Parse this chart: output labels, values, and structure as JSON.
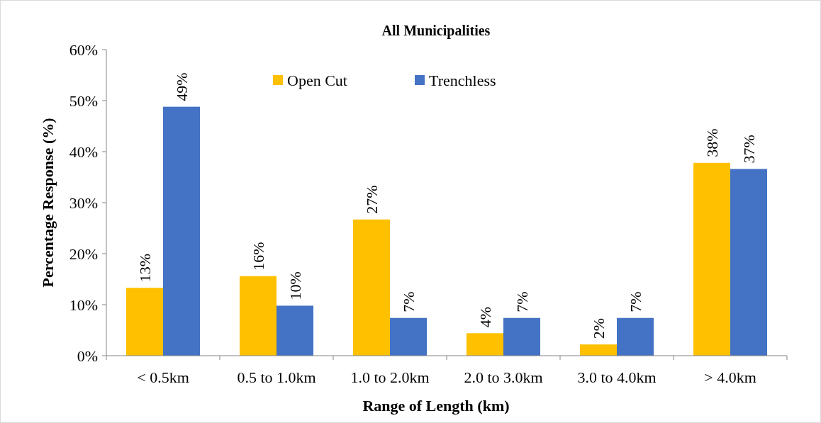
{
  "chart_data": {
    "type": "bar",
    "title": "All Municipalities",
    "xlabel": "Range of Length (km)",
    "ylabel": "Percentage Response (%)",
    "categories": [
      "< 0.5km",
      "0.5 to 1.0km",
      "1.0 to 2.0km",
      "2.0 to 3.0km",
      "3.0 to 4.0km",
      "> 4.0km"
    ],
    "series": [
      {
        "name": "Open Cut",
        "color": "#ffc000",
        "values": [
          13.3,
          15.6,
          26.7,
          4.4,
          2.2,
          37.8
        ],
        "value_labels": [
          "13%",
          "16%",
          "27%",
          "4%",
          "2%",
          "38%"
        ]
      },
      {
        "name": "Trenchless",
        "color": "#4472c4",
        "values": [
          48.8,
          9.8,
          7.4,
          7.4,
          7.4,
          36.6
        ],
        "value_labels": [
          "49%",
          "10%",
          "7%",
          "7%",
          "7%",
          "37%"
        ]
      }
    ],
    "ylim": [
      0,
      60
    ],
    "yticks": [
      {
        "value": 0,
        "label": "0%"
      },
      {
        "value": 10,
        "label": "10%"
      },
      {
        "value": 20,
        "label": "20%"
      },
      {
        "value": 30,
        "label": "30%"
      },
      {
        "value": 40,
        "label": "40%"
      },
      {
        "value": 50,
        "label": "50%"
      },
      {
        "value": 60,
        "label": "60%"
      }
    ],
    "grid": false,
    "legend": "top"
  }
}
